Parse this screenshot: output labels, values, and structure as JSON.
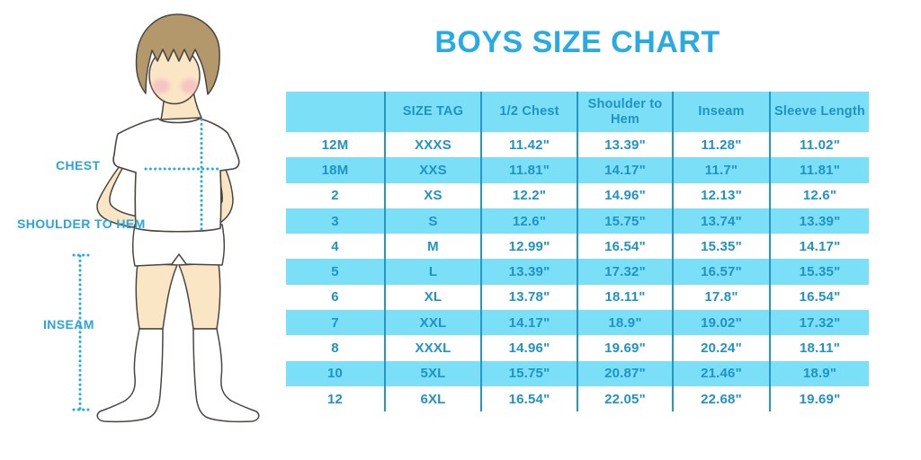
{
  "title": "BOYS SIZE CHART",
  "illustration": {
    "chest_label": "CHEST",
    "shoulder_to_hem_label": "SHOULDER TO HEM",
    "inseam_label": "INSEAM"
  },
  "chart_data": {
    "type": "table",
    "title": "BOYS SIZE CHART",
    "columns": [
      "",
      "SIZE TAG",
      "1/2 Chest",
      "Shoulder to Hem",
      "Inseam",
      "Sleeve Length"
    ],
    "rows": [
      [
        "12M",
        "XXXS",
        "11.42\"",
        "13.39\"",
        "11.28\"",
        "11.02\""
      ],
      [
        "18M",
        "XXS",
        "11.81\"",
        "14.17\"",
        "11.7\"",
        "11.81\""
      ],
      [
        "2",
        "XS",
        "12.2\"",
        "14.96\"",
        "12.13\"",
        "12.6\""
      ],
      [
        "3",
        "S",
        "12.6\"",
        "15.75\"",
        "13.74\"",
        "13.39\""
      ],
      [
        "4",
        "M",
        "12.99\"",
        "16.54\"",
        "15.35\"",
        "14.17\""
      ],
      [
        "5",
        "L",
        "13.39\"",
        "17.32\"",
        "16.57\"",
        "15.35\""
      ],
      [
        "6",
        "XL",
        "13.78\"",
        "18.11\"",
        "17.8\"",
        "16.54\""
      ],
      [
        "7",
        "XXL",
        "14.17\"",
        "18.9\"",
        "19.02\"",
        "17.32\""
      ],
      [
        "8",
        "XXXL",
        "14.96\"",
        "19.69\"",
        "20.24\"",
        "18.11\""
      ],
      [
        "10",
        "5XL",
        "15.75\"",
        "20.87\"",
        "21.46\"",
        "18.9\""
      ],
      [
        "12",
        "6XL",
        "16.54\"",
        "22.05\"",
        "22.68\"",
        "19.69\""
      ]
    ]
  },
  "colors": {
    "title_blue": "#29ABE2",
    "label_blue": "#29A4DE",
    "table_text_blue": "#2192C4",
    "table_divider_blue": "#2596C8",
    "row_highlight": "#7CDFF8",
    "row_plain": "#FFFFFF",
    "measure_line": "#29ABE2",
    "skin": "#FAE6C4",
    "hair": "#B3986C",
    "cheek": "#F2A9C0",
    "outline": "#4A453F",
    "background": "#FFFFFF"
  }
}
